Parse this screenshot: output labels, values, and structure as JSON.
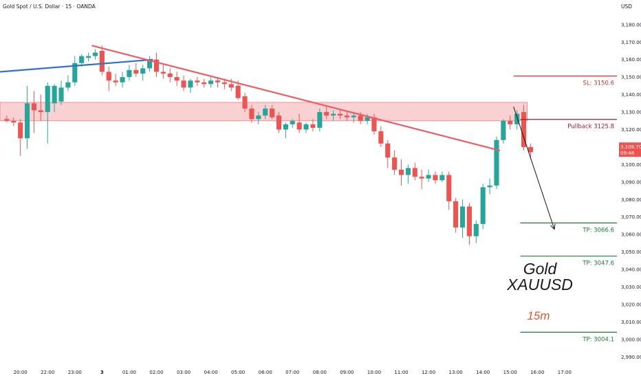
{
  "header": {
    "title": "Gold Spot / U.S. Dollar · 15 · OANDA",
    "currency": "USD"
  },
  "overlay_text": {
    "symbol_line1": "Gold",
    "symbol_line2": "XAUUSD",
    "timeframe": "15m"
  },
  "price_tag": {
    "price": "3,108.700",
    "countdown": "09:48"
  },
  "colors": {
    "up": "#26a69a",
    "down": "#ef5350",
    "trendline_down": "#f05a63",
    "trendline_blue": "#2e6fd8",
    "zone_fill": "#f8c5c8",
    "zone_border": "#f28b92",
    "sl": "#d32f2f",
    "pullback": "#9e1b2c",
    "tp": "#1b7a33",
    "timeframe_text": "#e4572e"
  },
  "chart_data": {
    "type": "candlestick",
    "title": "Gold Spot / U.S. Dollar · 15 · OANDA",
    "ylabel": "USD",
    "ylim": [
      2985,
      3187
    ],
    "yticks": [
      "3,180.000",
      "3,170.000",
      "3,160.000",
      "3,150.000",
      "3,140.000",
      "3,130.000",
      "3,120.000",
      "3,110.000",
      "3,100.000",
      "3,090.000",
      "3,080.000",
      "3,070.000",
      "3,060.000",
      "3,050.000",
      "3,040.000",
      "3,030.000",
      "3,020.000",
      "3,010.000",
      "3,000.000",
      "2,990.000"
    ],
    "ytick_values": [
      3180,
      3170,
      3160,
      3150,
      3140,
      3130,
      3120,
      3110,
      3100,
      3090,
      3080,
      3070,
      3060,
      3050,
      3040,
      3030,
      3020,
      3010,
      3000,
      2990
    ],
    "xlim": [
      -1,
      90
    ],
    "xticks": [
      {
        "label": "20:00",
        "i": 2
      },
      {
        "label": "22:00",
        "i": 6
      },
      {
        "label": "23:00",
        "i": 10
      },
      {
        "label": "3",
        "i": 14
      },
      {
        "label": "01:00",
        "i": 18
      },
      {
        "label": "02:00",
        "i": 22
      },
      {
        "label": "03:00",
        "i": 26
      },
      {
        "label": "04:00",
        "i": 30
      },
      {
        "label": "05:00",
        "i": 34
      },
      {
        "label": "06:00",
        "i": 38
      },
      {
        "label": "07:00",
        "i": 42
      },
      {
        "label": "08:00",
        "i": 46
      },
      {
        "label": "09:00",
        "i": 50
      },
      {
        "label": "10:00",
        "i": 54
      },
      {
        "label": "11:00",
        "i": 58
      },
      {
        "label": "12:00",
        "i": 62
      },
      {
        "label": "13:00",
        "i": 66
      },
      {
        "label": "14:00",
        "i": 70
      },
      {
        "label": "15:00",
        "i": 74
      },
      {
        "label": "16:00",
        "i": 78
      },
      {
        "label": "17:00",
        "i": 82
      }
    ],
    "candles": [
      {
        "o": 3126,
        "h": 3128,
        "l": 3124,
        "c": 3125
      },
      {
        "o": 3125,
        "h": 3127,
        "l": 3122,
        "c": 3124
      },
      {
        "o": 3124,
        "h": 3126,
        "l": 3105,
        "c": 3115
      },
      {
        "o": 3115,
        "h": 3145,
        "l": 3109,
        "c": 3135
      },
      {
        "o": 3135,
        "h": 3142,
        "l": 3118,
        "c": 3131
      },
      {
        "o": 3131,
        "h": 3140,
        "l": 3125,
        "c": 3130
      },
      {
        "o": 3130,
        "h": 3147,
        "l": 3112,
        "c": 3145
      },
      {
        "o": 3135,
        "h": 3146,
        "l": 3130,
        "c": 3145
      },
      {
        "o": 3136,
        "h": 3148,
        "l": 3134,
        "c": 3144
      },
      {
        "o": 3144,
        "h": 3151,
        "l": 3142,
        "c": 3147
      },
      {
        "o": 3147,
        "h": 3162,
        "l": 3145,
        "c": 3158
      },
      {
        "o": 3158,
        "h": 3163,
        "l": 3156,
        "c": 3162
      },
      {
        "o": 3161,
        "h": 3164,
        "l": 3159,
        "c": 3162
      },
      {
        "o": 3162,
        "h": 3166,
        "l": 3160,
        "c": 3164
      },
      {
        "o": 3165,
        "h": 3168,
        "l": 3151,
        "c": 3153
      },
      {
        "o": 3153,
        "h": 3156,
        "l": 3142,
        "c": 3148
      },
      {
        "o": 3148,
        "h": 3152,
        "l": 3145,
        "c": 3147
      },
      {
        "o": 3147,
        "h": 3153,
        "l": 3144,
        "c": 3150
      },
      {
        "o": 3150,
        "h": 3157,
        "l": 3148,
        "c": 3154
      },
      {
        "o": 3154,
        "h": 3158,
        "l": 3150,
        "c": 3152
      },
      {
        "o": 3152,
        "h": 3157,
        "l": 3148,
        "c": 3155
      },
      {
        "o": 3155,
        "h": 3162,
        "l": 3153,
        "c": 3160
      },
      {
        "o": 3160,
        "h": 3164,
        "l": 3150,
        "c": 3153
      },
      {
        "o": 3153,
        "h": 3157,
        "l": 3149,
        "c": 3152
      },
      {
        "o": 3152,
        "h": 3155,
        "l": 3147,
        "c": 3150
      },
      {
        "o": 3150,
        "h": 3153,
        "l": 3145,
        "c": 3148
      },
      {
        "o": 3148,
        "h": 3151,
        "l": 3142,
        "c": 3144
      },
      {
        "o": 3144,
        "h": 3149,
        "l": 3141,
        "c": 3148
      },
      {
        "o": 3148,
        "h": 3150,
        "l": 3145,
        "c": 3147
      },
      {
        "o": 3147,
        "h": 3149,
        "l": 3144,
        "c": 3146
      },
      {
        "o": 3146,
        "h": 3150,
        "l": 3144,
        "c": 3148
      },
      {
        "o": 3148,
        "h": 3150,
        "l": 3144,
        "c": 3147
      },
      {
        "o": 3147,
        "h": 3149,
        "l": 3143,
        "c": 3146
      },
      {
        "o": 3146,
        "h": 3149,
        "l": 3142,
        "c": 3144
      },
      {
        "o": 3145,
        "h": 3148,
        "l": 3137,
        "c": 3138
      },
      {
        "o": 3139,
        "h": 3141,
        "l": 3130,
        "c": 3132
      },
      {
        "o": 3132,
        "h": 3134,
        "l": 3124,
        "c": 3126
      },
      {
        "o": 3126,
        "h": 3130,
        "l": 3123,
        "c": 3128
      },
      {
        "o": 3128,
        "h": 3134,
        "l": 3126,
        "c": 3132
      },
      {
        "o": 3132,
        "h": 3134,
        "l": 3126,
        "c": 3127
      },
      {
        "o": 3128,
        "h": 3130,
        "l": 3118,
        "c": 3120
      },
      {
        "o": 3120,
        "h": 3124,
        "l": 3115,
        "c": 3123
      },
      {
        "o": 3123,
        "h": 3126,
        "l": 3121,
        "c": 3125
      },
      {
        "o": 3124,
        "h": 3129,
        "l": 3118,
        "c": 3120
      },
      {
        "o": 3120,
        "h": 3124,
        "l": 3118,
        "c": 3123
      },
      {
        "o": 3123,
        "h": 3126,
        "l": 3119,
        "c": 3121
      },
      {
        "o": 3121,
        "h": 3132,
        "l": 3119,
        "c": 3130
      },
      {
        "o": 3130,
        "h": 3133,
        "l": 3126,
        "c": 3128
      },
      {
        "o": 3128,
        "h": 3131,
        "l": 3125,
        "c": 3129
      },
      {
        "o": 3129,
        "h": 3131,
        "l": 3126,
        "c": 3128
      },
      {
        "o": 3128,
        "h": 3130,
        "l": 3125,
        "c": 3127
      },
      {
        "o": 3127,
        "h": 3129,
        "l": 3124,
        "c": 3128
      },
      {
        "o": 3128,
        "h": 3130,
        "l": 3123,
        "c": 3125
      },
      {
        "o": 3125,
        "h": 3129,
        "l": 3123,
        "c": 3127
      },
      {
        "o": 3127,
        "h": 3129,
        "l": 3117,
        "c": 3119
      },
      {
        "o": 3119,
        "h": 3122,
        "l": 3110,
        "c": 3112
      },
      {
        "o": 3112,
        "h": 3114,
        "l": 3098,
        "c": 3104
      },
      {
        "o": 3104,
        "h": 3108,
        "l": 3094,
        "c": 3097
      },
      {
        "o": 3097,
        "h": 3103,
        "l": 3088,
        "c": 3094
      },
      {
        "o": 3094,
        "h": 3100,
        "l": 3089,
        "c": 3098
      },
      {
        "o": 3098,
        "h": 3101,
        "l": 3091,
        "c": 3093
      },
      {
        "o": 3093,
        "h": 3097,
        "l": 3086,
        "c": 3092
      },
      {
        "o": 3092,
        "h": 3097,
        "l": 3090,
        "c": 3094
      },
      {
        "o": 3094,
        "h": 3096,
        "l": 3089,
        "c": 3091
      },
      {
        "o": 3091,
        "h": 3096,
        "l": 3090,
        "c": 3094
      },
      {
        "o": 3094,
        "h": 3096,
        "l": 3074,
        "c": 3079
      },
      {
        "o": 3079,
        "h": 3081,
        "l": 3061,
        "c": 3064
      },
      {
        "o": 3064,
        "h": 3080,
        "l": 3058,
        "c": 3076
      },
      {
        "o": 3076,
        "h": 3078,
        "l": 3054,
        "c": 3059
      },
      {
        "o": 3059,
        "h": 3068,
        "l": 3055,
        "c": 3066
      },
      {
        "o": 3066,
        "h": 3089,
        "l": 3063,
        "c": 3087
      },
      {
        "o": 3087,
        "h": 3092,
        "l": 3083,
        "c": 3088
      },
      {
        "o": 3088,
        "h": 3116,
        "l": 3086,
        "c": 3114
      },
      {
        "o": 3114,
        "h": 3126,
        "l": 3112,
        "c": 3125
      },
      {
        "o": 3125,
        "h": 3128,
        "l": 3120,
        "c": 3123
      },
      {
        "o": 3123,
        "h": 3131,
        "l": 3120,
        "c": 3129
      },
      {
        "o": 3130,
        "h": 3134,
        "l": 3108,
        "c": 3110
      },
      {
        "o": 3110,
        "h": 3112,
        "l": 3103,
        "c": 3107
      }
    ],
    "zone": {
      "low": 3125,
      "high": 3135.5,
      "i_start": -1,
      "i_end": 76.5
    },
    "trendlines": [
      {
        "name": "blue",
        "i1": -1,
        "p1": 3153,
        "i2": 21.5,
        "p2": 3160
      },
      {
        "name": "red",
        "i1": 12.5,
        "p1": 3168,
        "i2": 72.5,
        "p2": 3108
      }
    ],
    "arrow": {
      "i1": 74.5,
      "p1": 3133,
      "i2": 80.5,
      "p2": 3063
    },
    "levels": [
      {
        "label": "SL: 3150.6",
        "value": 3150.6,
        "i_start": 74.5,
        "color": "sl"
      },
      {
        "label": "Pullback 3125.8",
        "value": 3125.8,
        "i_start": 75.5,
        "color": "pullback"
      },
      {
        "label": "TP: 3066.6",
        "value": 3066.6,
        "i_start": 75.5,
        "color": "tp"
      },
      {
        "label": "TP: 3047.6",
        "value": 3047.6,
        "i_start": 75.5,
        "color": "tp"
      },
      {
        "label": "TP: 3004.1",
        "value": 3004.1,
        "i_start": 75.5,
        "color": "tp"
      }
    ],
    "current_price": 3108.7
  }
}
